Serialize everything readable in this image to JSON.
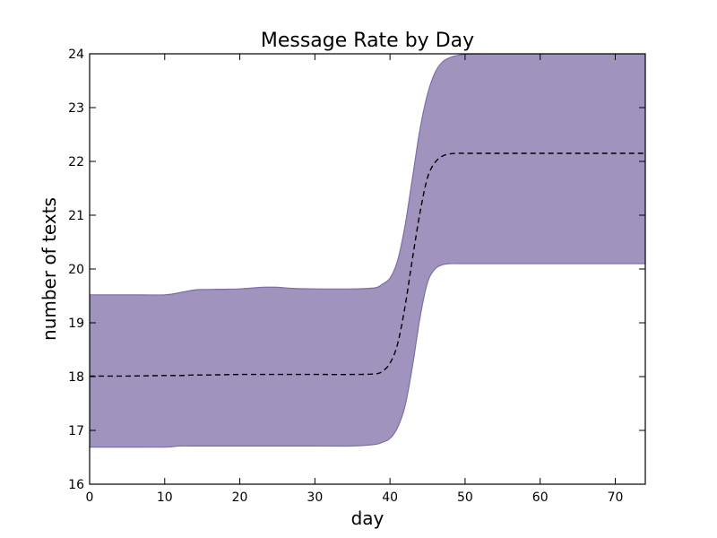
{
  "chart_data": {
    "type": "area",
    "title": "Message Rate by Day",
    "xlabel": "day",
    "ylabel": "number of texts",
    "xlim": [
      0,
      74
    ],
    "ylim": [
      16,
      24
    ],
    "xticks": [
      "0",
      "10",
      "20",
      "30",
      "40",
      "50",
      "60",
      "70"
    ],
    "yticks": [
      "16",
      "17",
      "18",
      "19",
      "20",
      "21",
      "22",
      "23",
      "24"
    ],
    "grid": false,
    "legend": false,
    "band_color": "#a094bf",
    "band_edge_color": "#7d6fa6",
    "mean_color": "#000000",
    "x": [
      0,
      5,
      10,
      12,
      14,
      16,
      20,
      23,
      25,
      27,
      30,
      35,
      38,
      39,
      40,
      41,
      42,
      43,
      44,
      45,
      46,
      47,
      48,
      49,
      50,
      52,
      55,
      60,
      65,
      70,
      74
    ],
    "series": [
      {
        "role": "upper",
        "values": [
          19.52,
          19.52,
          19.52,
          19.56,
          19.61,
          19.62,
          19.63,
          19.66,
          19.66,
          19.64,
          19.63,
          19.63,
          19.65,
          19.72,
          19.83,
          20.15,
          20.8,
          21.7,
          22.6,
          23.25,
          23.65,
          23.85,
          23.93,
          23.97,
          23.99,
          24.0,
          24.0,
          24.0,
          24.0,
          24.0,
          24.0
        ]
      },
      {
        "role": "mean",
        "values": [
          18.01,
          18.01,
          18.02,
          18.02,
          18.03,
          18.03,
          18.04,
          18.04,
          18.04,
          18.04,
          18.04,
          18.04,
          18.05,
          18.1,
          18.25,
          18.6,
          19.3,
          20.2,
          21.05,
          21.7,
          21.98,
          22.1,
          22.14,
          22.15,
          22.15,
          22.15,
          22.15,
          22.15,
          22.15,
          22.15,
          22.15
        ]
      },
      {
        "role": "lower",
        "values": [
          16.69,
          16.69,
          16.69,
          16.71,
          16.71,
          16.71,
          16.71,
          16.71,
          16.71,
          16.71,
          16.71,
          16.71,
          16.74,
          16.78,
          16.85,
          17.05,
          17.45,
          18.2,
          19.1,
          19.75,
          20.0,
          20.08,
          20.1,
          20.1,
          20.1,
          20.1,
          20.1,
          20.1,
          20.1,
          20.1,
          20.1
        ]
      }
    ]
  }
}
